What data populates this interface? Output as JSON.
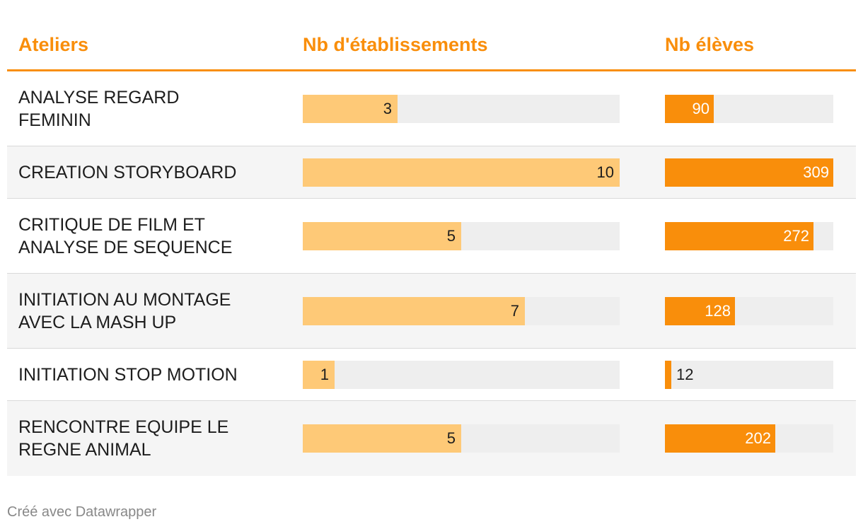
{
  "header": {
    "col_atelier": "Ateliers",
    "col_etablissements": "Nb d'établissements",
    "col_eleves": "Nb élèves"
  },
  "footer": {
    "credit": "Créé avec Datawrapper"
  },
  "colors": {
    "accent": "#f98e0b",
    "etab_bar": "#fec977",
    "eleves_bar": "#f98e0b",
    "track": "#eeeeee",
    "row_alt": "#f5f5f5"
  },
  "chart_data": {
    "type": "table",
    "columns": [
      "Ateliers",
      "Nb d'établissements",
      "Nb élèves"
    ],
    "scales": {
      "etablissements_max": 10,
      "eleves_max": 309
    },
    "rows": [
      {
        "lines": [
          "ANALYSE REGARD",
          "FEMININ"
        ],
        "etablissements": 3,
        "eleves": 90
      },
      {
        "lines": [
          "CREATION STORYBOARD"
        ],
        "etablissements": 10,
        "eleves": 309
      },
      {
        "lines": [
          "CRITIQUE DE FILM ET",
          "ANALYSE DE SEQUENCE"
        ],
        "etablissements": 5,
        "eleves": 272
      },
      {
        "lines": [
          "INITIATION AU MONTAGE",
          "AVEC LA MASH UP"
        ],
        "etablissements": 7,
        "eleves": 128
      },
      {
        "lines": [
          "INITIATION STOP MOTION"
        ],
        "etablissements": 1,
        "eleves": 12
      },
      {
        "lines": [
          "RENCONTRE EQUIPE LE",
          "REGNE ANIMAL"
        ],
        "etablissements": 5,
        "eleves": 202
      }
    ]
  }
}
